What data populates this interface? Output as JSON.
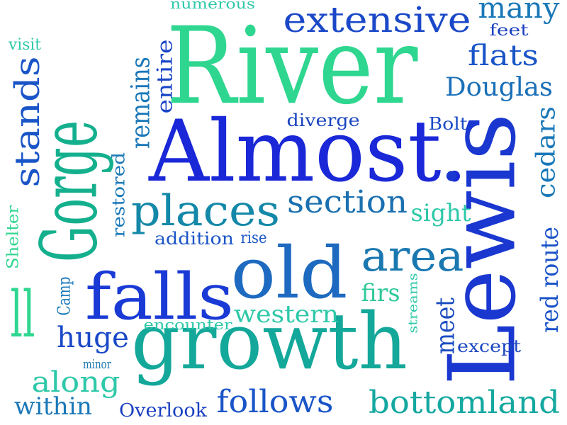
{
  "words": [
    "River",
    "Almost.",
    "Gorge",
    "Lewis",
    "growth",
    "old",
    "falls",
    "places",
    "extensive",
    "many",
    "feet",
    "flats",
    "Douglas",
    "Bolt",
    "cedars",
    "sight",
    "red route",
    "section",
    "area",
    "firs",
    "streams",
    "meet",
    "except",
    "bottomland",
    "follows",
    "Overlook",
    "within",
    "along",
    "minor",
    "huge",
    "encounter",
    "western",
    "Camp",
    "ll",
    "Shelter",
    "addition",
    "rise",
    "restored",
    "remains",
    "entire",
    "diverge",
    "numerous",
    "visit",
    "stands"
  ]
}
